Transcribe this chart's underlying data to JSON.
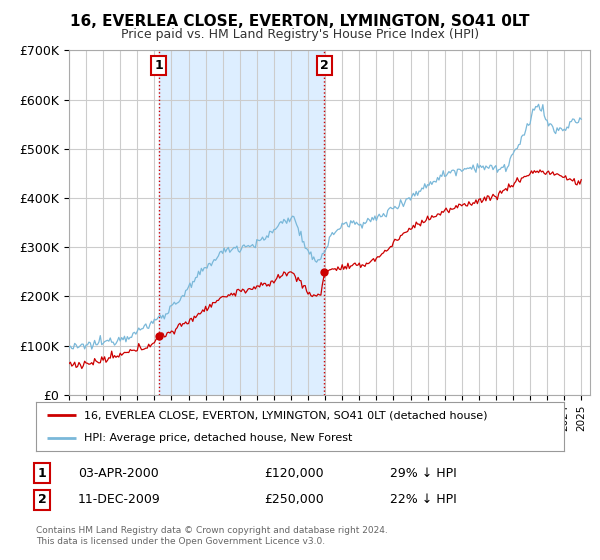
{
  "title": "16, EVERLEA CLOSE, EVERTON, LYMINGTON, SO41 0LT",
  "subtitle": "Price paid vs. HM Land Registry's House Price Index (HPI)",
  "ylim": [
    0,
    700000
  ],
  "yticks": [
    0,
    100000,
    200000,
    300000,
    400000,
    500000,
    600000,
    700000
  ],
  "ytick_labels": [
    "£0",
    "£100K",
    "£200K",
    "£300K",
    "£400K",
    "£500K",
    "£600K",
    "£700K"
  ],
  "xlim_start": 1995.0,
  "xlim_end": 2025.5,
  "sale1_date": 2000.26,
  "sale1_price": 120000,
  "sale1_label": "1",
  "sale2_date": 2009.95,
  "sale2_price": 250000,
  "sale2_label": "2",
  "hpi_color": "#7ab8d9",
  "price_color": "#cc0000",
  "shading_color": "#ddeeff",
  "grid_color": "#cccccc",
  "legend_line1": "16, EVERLEA CLOSE, EVERTON, LYMINGTON, SO41 0LT (detached house)",
  "legend_line2": "HPI: Average price, detached house, New Forest",
  "info1_label": "1",
  "info1_date": "03-APR-2000",
  "info1_price": "£120,000",
  "info1_hpi": "29% ↓ HPI",
  "info2_label": "2",
  "info2_date": "11-DEC-2009",
  "info2_price": "£250,000",
  "info2_hpi": "22% ↓ HPI",
  "footnote": "Contains HM Land Registry data © Crown copyright and database right 2024.\nThis data is licensed under the Open Government Licence v3.0."
}
